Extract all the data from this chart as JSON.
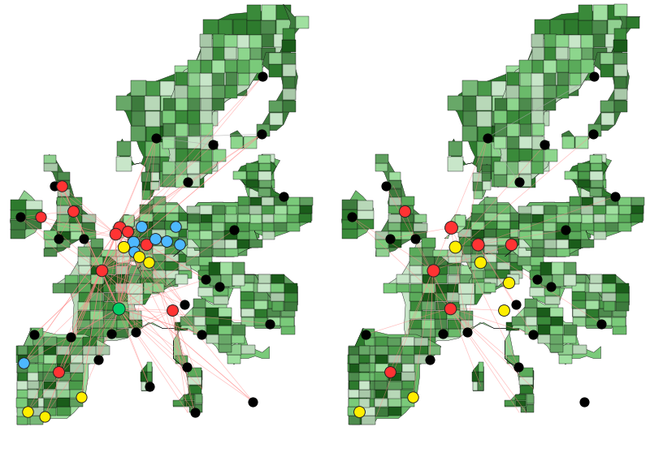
{
  "fig_width": 8.0,
  "fig_height": 5.58,
  "dpi": 100,
  "background_color": "#ffffff",
  "green_shades": [
    "#1a5c1a",
    "#2d7a2d",
    "#3a8a3a",
    "#4a9a4a",
    "#5aaa5a",
    "#6aba6a",
    "#7aca7a",
    "#4d8b4d",
    "#3d7b3d",
    "#5e9f5e",
    "#8dd68d",
    "#a0e0a0",
    "#90d090",
    "#c8e6c9",
    "#b8d8b8",
    "#a8c8a8",
    "#78b878",
    "#68a868"
  ],
  "edge_color": "#111111",
  "line_color_pink": "#ff8888",
  "line_color_gray": "#aaaaaa",
  "line_alpha": 0.55,
  "line_width": 0.5,
  "left_depots": [
    {
      "lon": 4.9,
      "lat": 52.4,
      "color": "#ff3333",
      "size": 120
    },
    {
      "lon": 4.3,
      "lat": 51.9,
      "color": "#ff3333",
      "size": 110
    },
    {
      "lon": 6.0,
      "lat": 52.1,
      "color": "#ff3333",
      "size": 100
    },
    {
      "lon": 8.7,
      "lat": 51.0,
      "color": "#ff3333",
      "size": 110
    },
    {
      "lon": 6.8,
      "lat": 51.2,
      "color": "#4db8ff",
      "size": 110
    },
    {
      "lon": 8.0,
      "lat": 52.5,
      "color": "#4db8ff",
      "size": 100
    },
    {
      "lon": 9.9,
      "lat": 51.5,
      "color": "#4db8ff",
      "size": 100
    },
    {
      "lon": 11.5,
      "lat": 51.3,
      "color": "#4db8ff",
      "size": 100
    },
    {
      "lon": 12.8,
      "lat": 52.5,
      "color": "#4db8ff",
      "size": 95
    },
    {
      "lon": 13.4,
      "lat": 51.0,
      "color": "#4db8ff",
      "size": 95
    },
    {
      "lon": 7.0,
      "lat": 50.4,
      "color": "#4db8ff",
      "size": 95
    },
    {
      "lon": 5.5,
      "lat": 50.8,
      "color": "#ffee00",
      "size": 105
    },
    {
      "lon": 7.6,
      "lat": 50.0,
      "color": "#ffee00",
      "size": 100
    },
    {
      "lon": 9.0,
      "lat": 49.5,
      "color": "#ffee00",
      "size": 95
    },
    {
      "lon": 2.35,
      "lat": 48.85,
      "color": "#ff3333",
      "size": 110
    },
    {
      "lon": 4.8,
      "lat": 45.7,
      "color": "#00cc66",
      "size": 120
    },
    {
      "lon": 12.3,
      "lat": 45.5,
      "color": "#ff3333",
      "size": 100
    },
    {
      "lon": -8.6,
      "lat": 41.1,
      "color": "#4db8ff",
      "size": 95
    },
    {
      "lon": -3.7,
      "lat": 40.4,
      "color": "#ff3333",
      "size": 100
    },
    {
      "lon": -8.0,
      "lat": 37.1,
      "color": "#ffee00",
      "size": 95
    },
    {
      "lon": -5.6,
      "lat": 36.7,
      "color": "#ffee00",
      "size": 90
    },
    {
      "lon": -0.5,
      "lat": 38.3,
      "color": "#ffee00",
      "size": 90
    },
    {
      "lon": -1.6,
      "lat": 53.8,
      "color": "#ff3333",
      "size": 100
    },
    {
      "lon": -3.2,
      "lat": 55.9,
      "color": "#ff3333",
      "size": 95
    },
    {
      "lon": -6.2,
      "lat": 53.3,
      "color": "#ff3333",
      "size": 90
    }
  ],
  "right_depots": [
    {
      "lon": 4.9,
      "lat": 52.4,
      "color": "#ff3333",
      "size": 130
    },
    {
      "lon": 8.7,
      "lat": 51.0,
      "color": "#ff3333",
      "size": 120
    },
    {
      "lon": 13.4,
      "lat": 51.0,
      "color": "#ff3333",
      "size": 110
    },
    {
      "lon": 5.5,
      "lat": 50.8,
      "color": "#ffee00",
      "size": 115
    },
    {
      "lon": 9.0,
      "lat": 49.5,
      "color": "#ffee00",
      "size": 110
    },
    {
      "lon": 13.0,
      "lat": 47.8,
      "color": "#ffee00",
      "size": 105
    },
    {
      "lon": 2.35,
      "lat": 48.85,
      "color": "#ff3333",
      "size": 120
    },
    {
      "lon": 4.8,
      "lat": 45.7,
      "color": "#ff3333",
      "size": 110
    },
    {
      "lon": -3.7,
      "lat": 40.4,
      "color": "#ff3333",
      "size": 100
    },
    {
      "lon": -8.0,
      "lat": 37.1,
      "color": "#ffee00",
      "size": 100
    },
    {
      "lon": -0.5,
      "lat": 38.3,
      "color": "#ffee00",
      "size": 95
    },
    {
      "lon": 12.3,
      "lat": 45.5,
      "color": "#ffee00",
      "size": 100
    },
    {
      "lon": -1.6,
      "lat": 53.8,
      "color": "#ff3333",
      "size": 105
    }
  ],
  "left_black_nodes": [
    {
      "lon": 10.0,
      "lat": 59.9
    },
    {
      "lon": 18.1,
      "lat": 59.3
    },
    {
      "lon": 24.9,
      "lat": 60.2
    },
    {
      "lon": 25.0,
      "lat": 65.0
    },
    {
      "lon": 14.5,
      "lat": 56.2
    },
    {
      "lon": 28.0,
      "lat": 55.0
    },
    {
      "lon": 21.0,
      "lat": 52.2
    },
    {
      "lon": 17.0,
      "lat": 48.1
    },
    {
      "lon": 19.0,
      "lat": 47.5
    },
    {
      "lon": 16.4,
      "lat": 43.5
    },
    {
      "lon": 14.4,
      "lat": 40.8
    },
    {
      "lon": 15.5,
      "lat": 37.0
    },
    {
      "lon": 9.1,
      "lat": 39.2
    },
    {
      "lon": -0.1,
      "lat": 51.5
    },
    {
      "lon": -3.7,
      "lat": 51.5
    },
    {
      "lon": -4.3,
      "lat": 55.9
    },
    {
      "lon": -9.1,
      "lat": 53.3
    },
    {
      "lon": -7.1,
      "lat": 43.5
    },
    {
      "lon": 1.9,
      "lat": 41.4
    },
    {
      "lon": -2.0,
      "lat": 43.3
    },
    {
      "lon": 3.7,
      "lat": 43.6
    },
    {
      "lon": 7.2,
      "lat": 43.7
    },
    {
      "lon": 14.0,
      "lat": 46.0
    },
    {
      "lon": 23.7,
      "lat": 37.9
    },
    {
      "lon": 26.1,
      "lat": 44.4
    }
  ],
  "right_black_nodes": [
    {
      "lon": 10.0,
      "lat": 59.9
    },
    {
      "lon": 18.1,
      "lat": 59.3
    },
    {
      "lon": 24.9,
      "lat": 60.2
    },
    {
      "lon": 25.0,
      "lat": 65.0
    },
    {
      "lon": 14.5,
      "lat": 56.2
    },
    {
      "lon": 28.0,
      "lat": 55.0
    },
    {
      "lon": 21.0,
      "lat": 52.2
    },
    {
      "lon": 17.0,
      "lat": 48.1
    },
    {
      "lon": 19.0,
      "lat": 47.5
    },
    {
      "lon": 16.4,
      "lat": 43.5
    },
    {
      "lon": 14.4,
      "lat": 40.8
    },
    {
      "lon": -0.1,
      "lat": 51.5
    },
    {
      "lon": -3.7,
      "lat": 51.5
    },
    {
      "lon": -4.3,
      "lat": 55.9
    },
    {
      "lon": -9.1,
      "lat": 53.3
    },
    {
      "lon": -7.1,
      "lat": 43.5
    },
    {
      "lon": 1.9,
      "lat": 41.4
    },
    {
      "lon": 3.7,
      "lat": 43.6
    },
    {
      "lon": 7.2,
      "lat": 43.7
    },
    {
      "lon": 14.0,
      "lat": 46.0
    },
    {
      "lon": 23.7,
      "lat": 37.9
    },
    {
      "lon": 26.1,
      "lat": 44.4
    }
  ],
  "lon_min": -11.0,
  "lon_max": 32.0,
  "lat_min": 34.0,
  "lat_max": 71.0
}
